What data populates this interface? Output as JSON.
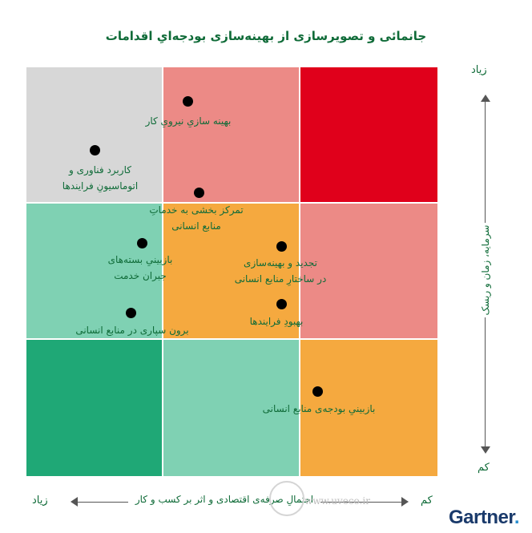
{
  "title": "جانمائی و تصویرسازی از بهینه‌سازی بودجه‌ایِ اقدامات",
  "y_axis": {
    "title": "سرمایه، زمان و ریسک",
    "high": "زیاد",
    "low": "کم"
  },
  "x_axis": {
    "title": "احتمالِ صرفه‌ی اقتصادی و اثر بر کسب و کار",
    "left": "زیاد",
    "right": "کم"
  },
  "colors": {
    "row1": [
      "#d7d7d7",
      "#ec8a86",
      "#e0001b"
    ],
    "row2": [
      "#7fd1b3",
      "#f5a93f",
      "#ec8a86"
    ],
    "row3": [
      "#1fa876",
      "#7fd1b3",
      "#f5a93f"
    ]
  },
  "items": [
    {
      "label_1": "بهینه سازیِ نیرویِ کار",
      "label_2": ""
    },
    {
      "label_1": "کاربرد فناوری و",
      "label_2": "اتوماسیونِ فرایندها"
    },
    {
      "label_1": "تمرکز بخشی به خدماتِ",
      "label_2": "منابع انسانی"
    },
    {
      "label_1": "بازبینیِ بسته‌های",
      "label_2": "جبران خدمت"
    },
    {
      "label_1": "تجدید و بهینه‌سازی",
      "label_2": "در ساختارِ منابع انسانی"
    },
    {
      "label_1": "برون سپاری در منابع انسانی",
      "label_2": ""
    },
    {
      "label_1": "بهبودِ فرایندها",
      "label_2": ""
    },
    {
      "label_1": "بازبینیِ بودجه‌ی منابع انسانی",
      "label_2": ""
    }
  ],
  "watermark": "www.uveco.ir",
  "logo": {
    "text": "Gartner",
    "accent": "."
  }
}
